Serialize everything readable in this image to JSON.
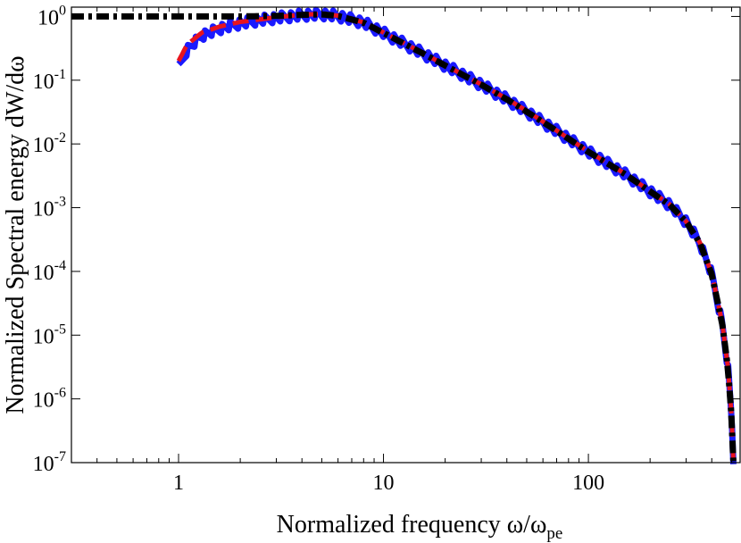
{
  "chart_data": {
    "type": "line",
    "title": "",
    "xlabel": "Normalized frequency ω/ω",
    "xlabel_sub": "pe",
    "ylabel": "Normalized Spectral energy dW/dω",
    "xscale": "log",
    "yscale": "log",
    "xlim": [
      0.3,
      550
    ],
    "ylim": [
      1e-07,
      1.4
    ],
    "grid": false,
    "legend": "none",
    "x_ticks": [
      {
        "value": 1,
        "label": "1"
      },
      {
        "value": 10,
        "label": "10"
      },
      {
        "value": 100,
        "label": "100"
      }
    ],
    "y_ticks": [
      {
        "value": 1,
        "base": "10",
        "exp": "0"
      },
      {
        "value": 0.1,
        "base": "10",
        "exp": "-1"
      },
      {
        "value": 0.01,
        "base": "10",
        "exp": "-2"
      },
      {
        "value": 0.001,
        "base": "10",
        "exp": "-3"
      },
      {
        "value": 0.0001,
        "base": "10",
        "exp": "-4"
      },
      {
        "value": 1e-05,
        "base": "10",
        "exp": "-5"
      },
      {
        "value": 1e-06,
        "base": "10",
        "exp": "-6"
      },
      {
        "value": 1e-07,
        "base": "10",
        "exp": "-7"
      }
    ],
    "series": [
      {
        "style": "solid-noisy",
        "color": "#1a1aff",
        "x": [
          1.0,
          1.1,
          1.3,
          1.6,
          2.0,
          2.5,
          3.0,
          4.0,
          5.0,
          6.0,
          8.0,
          10,
          15,
          20,
          30,
          40,
          50,
          70,
          100,
          150,
          200,
          250,
          300,
          350,
          400,
          450,
          480,
          500,
          510
        ],
        "y": [
          0.15,
          0.3,
          0.5,
          0.65,
          0.78,
          0.88,
          0.95,
          1.05,
          1.08,
          1.02,
          0.8,
          0.55,
          0.28,
          0.17,
          0.085,
          0.05,
          0.032,
          0.016,
          0.0075,
          0.0034,
          0.0018,
          0.0011,
          0.0006,
          0.00028,
          9e-05,
          1.5e-05,
          3e-06,
          5e-07,
          1e-07
        ]
      },
      {
        "style": "dashed",
        "color": "#e8141e",
        "x": [
          1.0,
          1.1,
          1.3,
          1.6,
          2.0,
          2.5,
          3.0,
          4.0,
          5.0,
          6.0,
          8.0,
          10,
          15,
          20,
          30,
          40,
          50,
          70,
          100,
          150,
          200,
          250,
          300,
          350,
          400,
          450,
          480,
          500,
          510
        ],
        "y": [
          0.2,
          0.36,
          0.56,
          0.7,
          0.82,
          0.9,
          0.97,
          1.07,
          1.09,
          1.03,
          0.81,
          0.56,
          0.285,
          0.172,
          0.086,
          0.051,
          0.033,
          0.0162,
          0.0076,
          0.00345,
          0.00182,
          0.00112,
          0.00061,
          0.000285,
          9.2e-05,
          1.55e-05,
          3.1e-06,
          5.2e-07,
          1e-07
        ]
      },
      {
        "style": "dash-dot",
        "color": "#000000",
        "x": [
          0.3,
          0.5,
          1.0,
          2.0,
          3.0,
          4.0,
          5.0,
          6.0,
          8.0,
          10,
          15,
          20,
          30,
          40,
          50,
          70,
          100,
          150,
          200,
          250,
          300,
          350,
          400,
          450,
          480,
          500,
          510
        ],
        "y": [
          1.0,
          1.0,
          1.0,
          1.0,
          1.02,
          1.06,
          1.08,
          1.02,
          0.8,
          0.55,
          0.28,
          0.17,
          0.085,
          0.05,
          0.032,
          0.016,
          0.0075,
          0.0034,
          0.0018,
          0.0011,
          0.0006,
          0.00028,
          9e-05,
          1.5e-05,
          3e-06,
          5e-07,
          1e-07
        ]
      }
    ]
  }
}
